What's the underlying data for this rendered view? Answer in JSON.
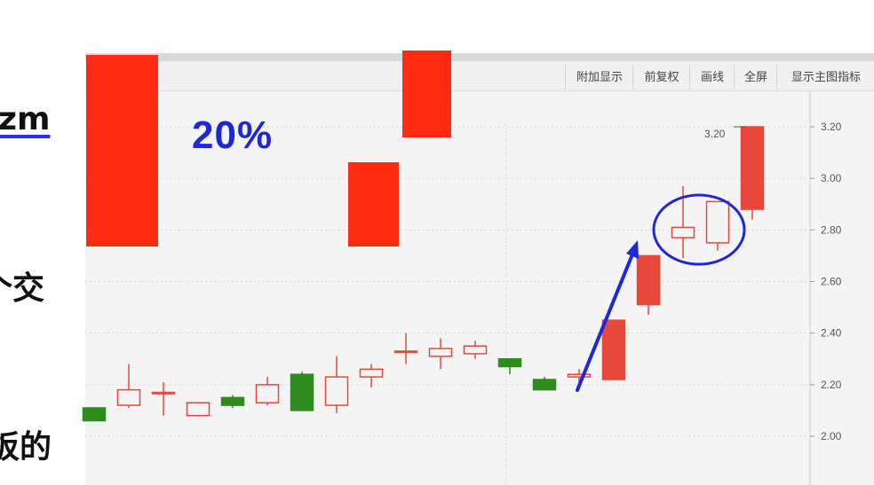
{
  "left_text": {
    "line1": "zm",
    "line2": "个交",
    "line3": "板的"
  },
  "toolbar": {
    "items": [
      "附加显示",
      "前复权",
      "画线",
      "全屏",
      "显示主图指标"
    ]
  },
  "annotation": {
    "percent": "20%",
    "price_label": "3.20"
  },
  "colors": {
    "up": "#e8483b",
    "down": "#2e8b1d",
    "accent_blue": "#1f27d6",
    "overlay_red": "#ff2a12"
  },
  "chart_data": {
    "type": "candlestick",
    "y_axis": {
      "ticks": [
        "3.20",
        "3.00",
        "2.80",
        "2.60",
        "2.40",
        "2.20",
        "2.00"
      ],
      "range": [
        1.93,
        3.33
      ]
    },
    "grid": true,
    "candles": [
      {
        "open": 2.11,
        "close": 2.06,
        "high": 2.11,
        "low": 2.06,
        "dir": "down"
      },
      {
        "open": 2.12,
        "close": 2.18,
        "high": 2.28,
        "low": 2.11,
        "dir": "up"
      },
      {
        "open": 2.17,
        "close": 2.17,
        "high": 2.21,
        "low": 2.08,
        "dir": "up"
      },
      {
        "open": 2.08,
        "close": 2.13,
        "high": 2.13,
        "low": 2.08,
        "dir": "up"
      },
      {
        "open": 2.15,
        "close": 2.12,
        "high": 2.16,
        "low": 2.11,
        "dir": "down"
      },
      {
        "open": 2.13,
        "close": 2.2,
        "high": 2.23,
        "low": 2.12,
        "dir": "up"
      },
      {
        "open": 2.24,
        "close": 2.1,
        "high": 2.25,
        "low": 2.1,
        "dir": "down"
      },
      {
        "open": 2.12,
        "close": 2.23,
        "high": 2.31,
        "low": 2.09,
        "dir": "up"
      },
      {
        "open": 2.23,
        "close": 2.26,
        "high": 2.28,
        "low": 2.19,
        "dir": "up"
      },
      {
        "open": 2.33,
        "close": 2.33,
        "high": 2.4,
        "low": 2.28,
        "dir": "up"
      },
      {
        "open": 2.31,
        "close": 2.34,
        "high": 2.38,
        "low": 2.26,
        "dir": "up"
      },
      {
        "open": 2.32,
        "close": 2.35,
        "high": 2.37,
        "low": 2.3,
        "dir": "up"
      },
      {
        "open": 2.3,
        "close": 2.27,
        "high": 2.3,
        "low": 2.24,
        "dir": "down"
      },
      {
        "open": 2.22,
        "close": 2.18,
        "high": 2.23,
        "low": 2.18,
        "dir": "down"
      },
      {
        "open": 2.23,
        "close": 2.24,
        "high": 2.26,
        "low": 2.2,
        "dir": "up"
      },
      {
        "open": 2.22,
        "close": 2.45,
        "high": 2.45,
        "low": 2.22,
        "dir": "up",
        "filled": true
      },
      {
        "open": 2.51,
        "close": 2.7,
        "high": 2.7,
        "low": 2.47,
        "dir": "up",
        "filled": true
      },
      {
        "open": 2.77,
        "close": 2.81,
        "high": 2.97,
        "low": 2.69,
        "dir": "up"
      },
      {
        "open": 2.75,
        "close": 2.91,
        "high": 2.91,
        "low": 2.72,
        "dir": "up"
      },
      {
        "open": 2.88,
        "close": 3.2,
        "high": 3.2,
        "low": 2.84,
        "dir": "up",
        "filled": true
      }
    ]
  }
}
